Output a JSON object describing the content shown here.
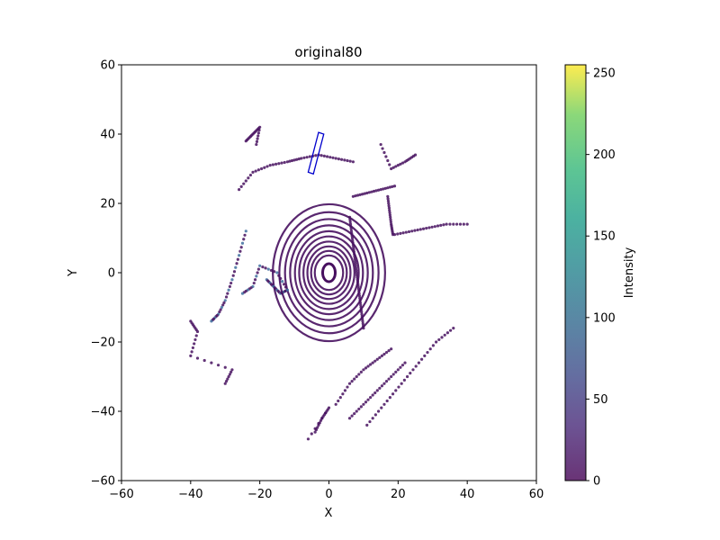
{
  "chart_data": {
    "type": "scatter",
    "title": "original80",
    "xlabel": "X",
    "ylabel": "Y",
    "xlim": [
      -60,
      60
    ],
    "ylim": [
      -60,
      60
    ],
    "x_ticks": [
      "−60",
      "−40",
      "−20",
      "0",
      "20",
      "40",
      "60"
    ],
    "y_ticks": [
      "−60",
      "−40",
      "−20",
      "0",
      "20",
      "40",
      "60"
    ],
    "grid": false,
    "colorbar": {
      "label": "Intensity",
      "range": [
        0,
        255
      ],
      "ticks": [
        "0",
        "50",
        "100",
        "150",
        "200",
        "250"
      ],
      "colormap": "viridis"
    },
    "base_point_color": "#47105f",
    "highlight_point_color": "#3f6f9f",
    "bounding_box": {
      "color": "#0000cc",
      "corners": [
        [
          -6.0,
          29.0
        ],
        [
          -3.0,
          40.5
        ],
        [
          -1.5,
          40.0
        ],
        [
          -4.5,
          28.5
        ]
      ]
    },
    "rings": [
      {
        "r": 5.0
      },
      {
        "r": 6.3
      },
      {
        "r": 7.6
      },
      {
        "r": 9.0
      },
      {
        "r": 10.5
      },
      {
        "r": 12.0
      },
      {
        "r": 13.7
      },
      {
        "r": 15.5
      },
      {
        "r": 17.5
      },
      {
        "r": 19.8
      }
    ],
    "clusters": [
      {
        "name": "wall-right",
        "points": [
          [
            6,
            16
          ],
          [
            6.5,
            12
          ],
          [
            7,
            8
          ],
          [
            7.5,
            4
          ],
          [
            8,
            0
          ],
          [
            8.5,
            -4
          ],
          [
            9,
            -8
          ],
          [
            9.5,
            -12
          ],
          [
            10,
            -16
          ]
        ]
      },
      {
        "name": "wall-upper",
        "points": [
          [
            7,
            22
          ],
          [
            11,
            23
          ],
          [
            15,
            24
          ],
          [
            19,
            25
          ]
        ]
      },
      {
        "name": "lower-arc-1",
        "points": [
          [
            2,
            -38
          ],
          [
            6,
            -32
          ],
          [
            10,
            -28
          ],
          [
            14,
            -25
          ],
          [
            18,
            -22
          ]
        ]
      },
      {
        "name": "lower-arc-2",
        "points": [
          [
            6,
            -42
          ],
          [
            10,
            -38
          ],
          [
            14,
            -34
          ],
          [
            18,
            -30
          ],
          [
            22,
            -26
          ]
        ]
      },
      {
        "name": "lower-arc-3",
        "points": [
          [
            11,
            -44
          ],
          [
            16,
            -38
          ],
          [
            21,
            -32
          ],
          [
            26,
            -26
          ],
          [
            31,
            -20
          ],
          [
            36,
            -16
          ]
        ]
      },
      {
        "name": "lower-dots",
        "points": [
          [
            -4,
            -46
          ],
          [
            -2,
            -42
          ],
          [
            0,
            -39
          ],
          [
            -6,
            -48
          ]
        ]
      },
      {
        "name": "right-line",
        "points": [
          [
            19,
            11
          ],
          [
            24,
            12
          ],
          [
            29,
            13
          ],
          [
            34,
            14
          ],
          [
            40,
            14
          ]
        ]
      },
      {
        "name": "right-vertical",
        "points": [
          [
            17,
            22
          ],
          [
            17.5,
            18
          ],
          [
            18,
            14
          ],
          [
            18.5,
            11
          ]
        ]
      },
      {
        "name": "right-upper-bracket",
        "points": [
          [
            15,
            37
          ],
          [
            18,
            30
          ],
          [
            22,
            32
          ],
          [
            25,
            34
          ]
        ]
      },
      {
        "name": "left-scatter-1",
        "points": [
          [
            -18,
            -2
          ],
          [
            -16,
            -4
          ],
          [
            -14,
            -6
          ],
          [
            -12,
            -5
          ],
          [
            -15,
            0
          ],
          [
            -20,
            2
          ],
          [
            -22,
            -4
          ],
          [
            -25,
            -6
          ]
        ]
      },
      {
        "name": "left-scatter-2",
        "points": [
          [
            -24,
            12
          ],
          [
            -26,
            5
          ],
          [
            -28,
            -2
          ],
          [
            -30,
            -8
          ],
          [
            -32,
            -12
          ],
          [
            -34,
            -14
          ]
        ]
      },
      {
        "name": "upper-left-cluster",
        "points": [
          [
            -24,
            38
          ],
          [
            -22,
            40
          ],
          [
            -20,
            42
          ],
          [
            -21,
            37
          ]
        ]
      },
      {
        "name": "upper-arcs",
        "points": [
          [
            -26,
            24
          ],
          [
            -22,
            29
          ],
          [
            -17,
            31
          ],
          [
            -12,
            32
          ],
          [
            -8,
            33
          ],
          [
            -3,
            34
          ],
          [
            2,
            33
          ],
          [
            7,
            32
          ]
        ]
      },
      {
        "name": "lower-left-dots",
        "points": [
          [
            -40,
            -14
          ],
          [
            -38,
            -17
          ],
          [
            -40,
            -24
          ],
          [
            -28,
            -28
          ],
          [
            -30,
            -32
          ]
        ]
      }
    ]
  }
}
